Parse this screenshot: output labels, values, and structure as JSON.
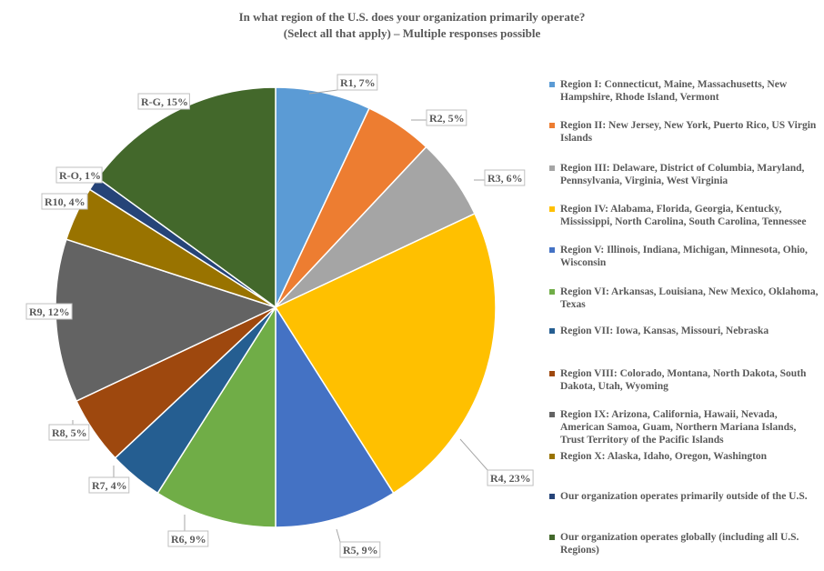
{
  "title_line1": "In what region of the U.S. does your organization primarily operate?",
  "title_line2": "(Select all that apply) – Multiple responses possible",
  "chart_data": {
    "type": "pie",
    "title": "In what region of the U.S. does your organization primarily operate? (Select all that apply) – Multiple responses possible",
    "legend_position": "right",
    "slices": [
      {
        "label": "R1, 7%",
        "value": 7,
        "legend": "Region I: Connecticut, Maine, Massachusetts, New Hampshire, Rhode Island, Vermont",
        "color": "#5b9bd5"
      },
      {
        "label": "R2, 5%",
        "value": 5,
        "legend": "Region II: New Jersey, New York, Puerto Rico, US Virgin Islands",
        "color": "#ed7d31"
      },
      {
        "label": "R3, 6%",
        "value": 6,
        "legend": "Region III: Delaware, District of Columbia, Maryland, Pennsylvania, Virginia, West Virginia",
        "color": "#a5a5a5"
      },
      {
        "label": "R4, 23%",
        "value": 23,
        "legend": "Region IV: Alabama, Florida, Georgia, Kentucky, Mississippi, North Carolina, South Carolina, Tennessee",
        "color": "#ffc000"
      },
      {
        "label": "R5, 9%",
        "value": 9,
        "legend": "Region V: Illinois, Indiana, Michigan, Minnesota, Ohio, Wisconsin",
        "color": "#4472c4"
      },
      {
        "label": "R6, 9%",
        "value": 9,
        "legend": "Region VI: Arkansas, Louisiana, New Mexico, Oklahoma, Texas",
        "color": "#70ad47"
      },
      {
        "label": "R7, 4%",
        "value": 4,
        "legend": "Region VII: Iowa, Kansas, Missouri, Nebraska",
        "color": "#255e91"
      },
      {
        "label": "R8, 5%",
        "value": 5,
        "legend": "Region VIII: Colorado, Montana, North Dakota, South Dakota, Utah, Wyoming",
        "color": "#9e480e"
      },
      {
        "label": "R9, 12%",
        "value": 12,
        "legend": "Region IX: Arizona, California, Hawaii, Nevada, American Samoa, Guam, Northern Mariana Islands, Trust Territory of the Pacific Islands",
        "color": "#636363"
      },
      {
        "label": "R10, 4%",
        "value": 4,
        "legend": "Region X: Alaska, Idaho, Oregon, Washington",
        "color": "#997300"
      },
      {
        "label": "R-O, 1%",
        "value": 1,
        "legend": "Our organization operates primarily outside of the U.S.",
        "color": "#264478"
      },
      {
        "label": "R-G, 15%",
        "value": 15,
        "legend": "Our organization operates globally (including all U.S. Regions)",
        "color": "#43682b"
      }
    ]
  }
}
